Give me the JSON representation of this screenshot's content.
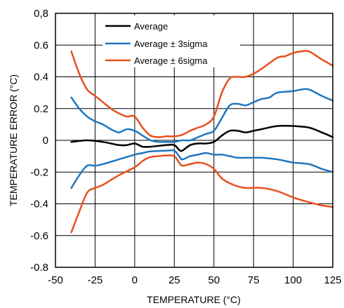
{
  "chart_data": {
    "type": "line",
    "title": "",
    "xlabel": "TEMPERATURE (°C)",
    "ylabel": "TEMPERATURE ERROR (°C)",
    "xlim": [
      -50,
      125
    ],
    "ylim": [
      -0.8,
      0.8
    ],
    "x_ticks": [
      -50,
      -25,
      0,
      25,
      50,
      75,
      100,
      125
    ],
    "x_tick_labels": [
      "-50",
      "-25",
      "0",
      "25",
      "50",
      "75",
      "100",
      "125"
    ],
    "y_ticks": [
      -0.8,
      -0.6,
      -0.4,
      -0.2,
      0,
      0.2,
      0.4,
      0.6,
      0.8
    ],
    "y_tick_labels": [
      "-0.8",
      "-0.6",
      "-0.4",
      "-0.2",
      "0",
      "0.2",
      "0.4",
      "0.6",
      "0,8"
    ],
    "grid": true,
    "legend_position": "top-center",
    "legend": [
      {
        "label": "Average",
        "color": "#000000"
      },
      {
        "label": "Average ± 3sigma",
        "color": "#1f77c0"
      },
      {
        "label": "Average ± 6sigma",
        "color": "#e8501e"
      }
    ],
    "series": [
      {
        "name": "Average",
        "color": "#000000",
        "points": [
          [
            -40,
            -0.01
          ],
          [
            -30,
            0.0
          ],
          [
            -20,
            -0.01
          ],
          [
            -10,
            -0.03
          ],
          [
            -5,
            -0.03
          ],
          [
            0,
            -0.02
          ],
          [
            5,
            -0.04
          ],
          [
            10,
            -0.04
          ],
          [
            20,
            -0.03
          ],
          [
            25,
            -0.03
          ],
          [
            28,
            -0.06
          ],
          [
            30,
            -0.065
          ],
          [
            35,
            -0.03
          ],
          [
            40,
            -0.02
          ],
          [
            45,
            -0.02
          ],
          [
            50,
            -0.01
          ],
          [
            55,
            0.03
          ],
          [
            60,
            0.06
          ],
          [
            65,
            0.06
          ],
          [
            70,
            0.05
          ],
          [
            75,
            0.06
          ],
          [
            80,
            0.07
          ],
          [
            90,
            0.09
          ],
          [
            100,
            0.09
          ],
          [
            110,
            0.08
          ],
          [
            118,
            0.05
          ],
          [
            125,
            0.02
          ]
        ]
      },
      {
        "name": "Average + 3sigma",
        "color": "#1f77c0",
        "points": [
          [
            -40,
            0.27
          ],
          [
            -35,
            0.2
          ],
          [
            -30,
            0.15
          ],
          [
            -25,
            0.12
          ],
          [
            -20,
            0.1
          ],
          [
            -15,
            0.07
          ],
          [
            -10,
            0.05
          ],
          [
            -5,
            0.07
          ],
          [
            0,
            0.06
          ],
          [
            5,
            0.03
          ],
          [
            10,
            0.0
          ],
          [
            15,
            -0.01
          ],
          [
            20,
            -0.01
          ],
          [
            25,
            -0.01
          ],
          [
            30,
            0.0
          ],
          [
            35,
            0.0
          ],
          [
            40,
            0.02
          ],
          [
            45,
            0.04
          ],
          [
            50,
            0.06
          ],
          [
            55,
            0.14
          ],
          [
            60,
            0.22
          ],
          [
            65,
            0.23
          ],
          [
            70,
            0.22
          ],
          [
            75,
            0.24
          ],
          [
            80,
            0.26
          ],
          [
            85,
            0.27
          ],
          [
            90,
            0.3
          ],
          [
            100,
            0.31
          ],
          [
            105,
            0.32
          ],
          [
            110,
            0.32
          ],
          [
            118,
            0.28
          ],
          [
            125,
            0.25
          ]
        ]
      },
      {
        "name": "Average - 3sigma",
        "color": "#1f77c0",
        "points": [
          [
            -40,
            -0.3
          ],
          [
            -35,
            -0.22
          ],
          [
            -30,
            -0.16
          ],
          [
            -25,
            -0.16
          ],
          [
            -20,
            -0.15
          ],
          [
            -10,
            -0.12
          ],
          [
            0,
            -0.09
          ],
          [
            5,
            -0.08
          ],
          [
            10,
            -0.07
          ],
          [
            20,
            -0.065
          ],
          [
            25,
            -0.065
          ],
          [
            28,
            -0.1
          ],
          [
            30,
            -0.12
          ],
          [
            35,
            -0.1
          ],
          [
            40,
            -0.09
          ],
          [
            45,
            -0.08
          ],
          [
            50,
            -0.09
          ],
          [
            55,
            -0.09
          ],
          [
            60,
            -0.1
          ],
          [
            65,
            -0.11
          ],
          [
            70,
            -0.11
          ],
          [
            80,
            -0.11
          ],
          [
            90,
            -0.12
          ],
          [
            100,
            -0.14
          ],
          [
            110,
            -0.15
          ],
          [
            118,
            -0.18
          ],
          [
            125,
            -0.2
          ]
        ]
      },
      {
        "name": "Average + 6sigma",
        "color": "#e8501e",
        "points": [
          [
            -40,
            0.56
          ],
          [
            -35,
            0.42
          ],
          [
            -30,
            0.32
          ],
          [
            -25,
            0.28
          ],
          [
            -20,
            0.24
          ],
          [
            -15,
            0.2
          ],
          [
            -10,
            0.17
          ],
          [
            -5,
            0.15
          ],
          [
            0,
            0.15
          ],
          [
            5,
            0.08
          ],
          [
            10,
            0.03
          ],
          [
            15,
            0.02
          ],
          [
            20,
            0.025
          ],
          [
            25,
            0.025
          ],
          [
            30,
            0.035
          ],
          [
            35,
            0.06
          ],
          [
            40,
            0.08
          ],
          [
            45,
            0.1
          ],
          [
            50,
            0.15
          ],
          [
            55,
            0.3
          ],
          [
            60,
            0.39
          ],
          [
            65,
            0.4
          ],
          [
            70,
            0.4
          ],
          [
            75,
            0.42
          ],
          [
            80,
            0.45
          ],
          [
            90,
            0.52
          ],
          [
            95,
            0.53
          ],
          [
            100,
            0.55
          ],
          [
            105,
            0.56
          ],
          [
            110,
            0.56
          ],
          [
            118,
            0.51
          ],
          [
            125,
            0.47
          ]
        ]
      },
      {
        "name": "Average - 6sigma",
        "color": "#e8501e",
        "points": [
          [
            -40,
            -0.58
          ],
          [
            -35,
            -0.45
          ],
          [
            -30,
            -0.33
          ],
          [
            -25,
            -0.3
          ],
          [
            -20,
            -0.28
          ],
          [
            -10,
            -0.22
          ],
          [
            0,
            -0.17
          ],
          [
            5,
            -0.13
          ],
          [
            10,
            -0.105
          ],
          [
            15,
            -0.1
          ],
          [
            20,
            -0.095
          ],
          [
            25,
            -0.1
          ],
          [
            28,
            -0.14
          ],
          [
            30,
            -0.16
          ],
          [
            35,
            -0.15
          ],
          [
            40,
            -0.14
          ],
          [
            45,
            -0.15
          ],
          [
            50,
            -0.18
          ],
          [
            55,
            -0.24
          ],
          [
            60,
            -0.27
          ],
          [
            65,
            -0.29
          ],
          [
            70,
            -0.3
          ],
          [
            80,
            -0.3
          ],
          [
            90,
            -0.32
          ],
          [
            100,
            -0.36
          ],
          [
            110,
            -0.39
          ],
          [
            118,
            -0.41
          ],
          [
            125,
            -0.42
          ]
        ]
      }
    ]
  }
}
